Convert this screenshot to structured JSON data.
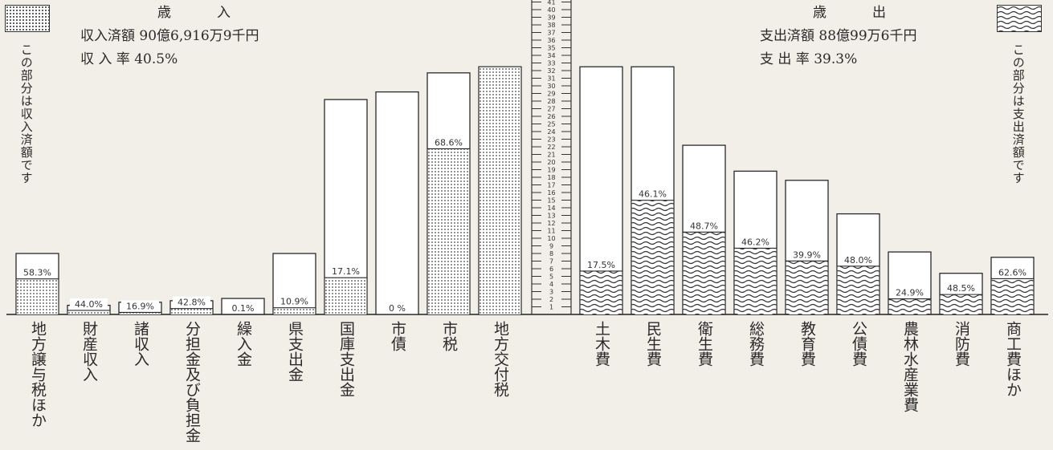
{
  "revenue_legend": {
    "heading": "歳　入",
    "line1": "収入済額 90億6,916万9千円",
    "line2": "収 入 率 40.5%",
    "note": "この部分は収入済額です"
  },
  "expense_legend": {
    "heading": "歳　出",
    "line1": "支出済額 88億99万6千円",
    "line2": "支 出 率 39.3%",
    "note": "この部分は支出済額です"
  },
  "chart_data": {
    "type": "bar",
    "y_scale_ticks": [
      1,
      2,
      3,
      4,
      5,
      6,
      7,
      8,
      9,
      10,
      11,
      12,
      13,
      14,
      15,
      16,
      17,
      18,
      19,
      20,
      21,
      22,
      23,
      24,
      25,
      26,
      27,
      28,
      29,
      30,
      31,
      32,
      33,
      34,
      35,
      36,
      37,
      38,
      39,
      40,
      41
    ],
    "revenue": {
      "categories": [
        "地方譲与税ほか",
        "財産収入",
        "諸収入",
        "分担金及び負担金",
        "繰入金",
        "県支出金",
        "国庫支出金",
        "市債",
        "市税",
        "地方交付税"
      ],
      "budget_units": [
        8,
        1.2,
        1.6,
        1.8,
        2.1,
        8,
        28.2,
        29.2,
        31.7,
        32.5
      ],
      "settled_pct": [
        58.3,
        44.0,
        16.9,
        42.8,
        0.1,
        10.9,
        17.1,
        0,
        68.6,
        100
      ],
      "labels": [
        "58.3%",
        "44.0%",
        "16.9%",
        "42.8%",
        "0.1%",
        "10.9%",
        "17.1%",
        "0 %",
        "68.6%",
        ""
      ]
    },
    "expense": {
      "categories": [
        "土木費",
        "民生費",
        "衛生費",
        "総務費",
        "教育費",
        "公債費",
        "農林水産業費",
        "消防費",
        "商工費ほか"
      ],
      "budget_units": [
        32.5,
        32.5,
        22.2,
        18.8,
        17.6,
        13.2,
        8.2,
        5.4,
        7.5
      ],
      "settled_pct": [
        17.5,
        46.1,
        48.7,
        46.2,
        39.9,
        48.0,
        24.9,
        48.5,
        62.6
      ],
      "labels": [
        "17.5%",
        "46.1%",
        "48.7%",
        "46.2%",
        "39.9%",
        "48.0%",
        "24.9%",
        "48.5%",
        "62.6%"
      ]
    }
  }
}
